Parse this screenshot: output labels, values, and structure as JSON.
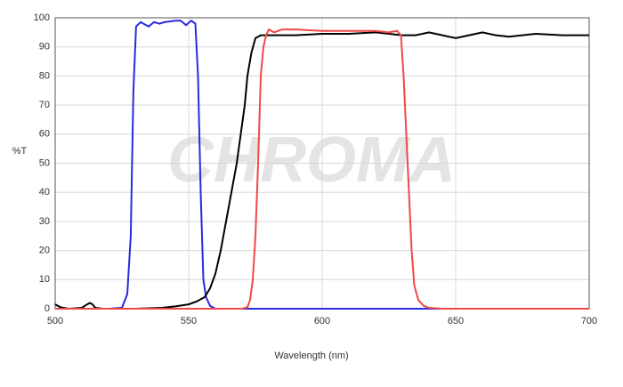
{
  "chart_data": {
    "type": "line",
    "watermark": "CHROMA",
    "xlabel": "Wavelength (nm)",
    "ylabel": "%T",
    "xlim": [
      500,
      700
    ],
    "xticks": [
      500,
      550,
      600,
      650,
      700
    ],
    "ylim": [
      0,
      100
    ],
    "yticks": [
      0,
      10,
      20,
      30,
      40,
      50,
      60,
      70,
      80,
      90,
      100
    ],
    "grid": true,
    "series": [
      {
        "color": "#2a2ae0",
        "x": [
          500,
          520,
          525,
          527,
          528.3,
          529.3,
          530.3,
          532,
          533,
          535,
          537,
          539,
          541,
          545,
          547,
          549,
          551,
          552.5,
          553.5,
          554.5,
          555.5,
          556.5,
          558,
          560,
          700
        ],
        "values": [
          0,
          0,
          0.3,
          5,
          25,
          75,
          97,
          98.5,
          98,
          97,
          98.5,
          98,
          98.5,
          99,
          99,
          97.5,
          99,
          98,
          80,
          40,
          10,
          4,
          1,
          0,
          0
        ]
      },
      {
        "color": "#000000",
        "x": [
          500,
          502,
          505,
          510,
          512,
          513,
          514,
          515,
          518,
          530,
          540,
          545,
          550,
          553,
          556,
          558,
          560,
          562,
          564,
          566,
          568,
          569.5,
          571,
          572,
          573.5,
          575,
          577,
          580,
          590,
          600,
          610,
          620,
          625,
          630,
          635,
          640,
          645,
          650,
          655,
          660,
          665,
          670,
          680,
          690,
          700
        ],
        "values": [
          1.5,
          0.5,
          0,
          0.3,
          1.5,
          2,
          1.5,
          0.3,
          0,
          0,
          0.3,
          0.8,
          1.5,
          2.5,
          4,
          7,
          12,
          20,
          30,
          40,
          50,
          60,
          70,
          80,
          88,
          93,
          94,
          94,
          94,
          94.5,
          94.5,
          95,
          94.5,
          94,
          94,
          95,
          94,
          93,
          94,
          95,
          94,
          93.5,
          94.5,
          94,
          94
        ]
      },
      {
        "color": "#f04848",
        "x": [
          500,
          560,
          570,
          572,
          573,
          574,
          575,
          576,
          577,
          578,
          579,
          580,
          582,
          585,
          590,
          600,
          610,
          620,
          625,
          628,
          629.5,
          630.5,
          631.5,
          632.5,
          633.5,
          634.5,
          636,
          638,
          640,
          645,
          700
        ],
        "values": [
          0,
          0,
          0,
          0.5,
          3,
          10,
          25,
          50,
          80,
          90,
          94,
          96,
          95,
          96,
          96,
          95.5,
          95.5,
          95.5,
          95,
          95.5,
          94,
          80,
          60,
          40,
          20,
          8,
          3,
          1,
          0.3,
          0,
          0
        ]
      }
    ]
  }
}
